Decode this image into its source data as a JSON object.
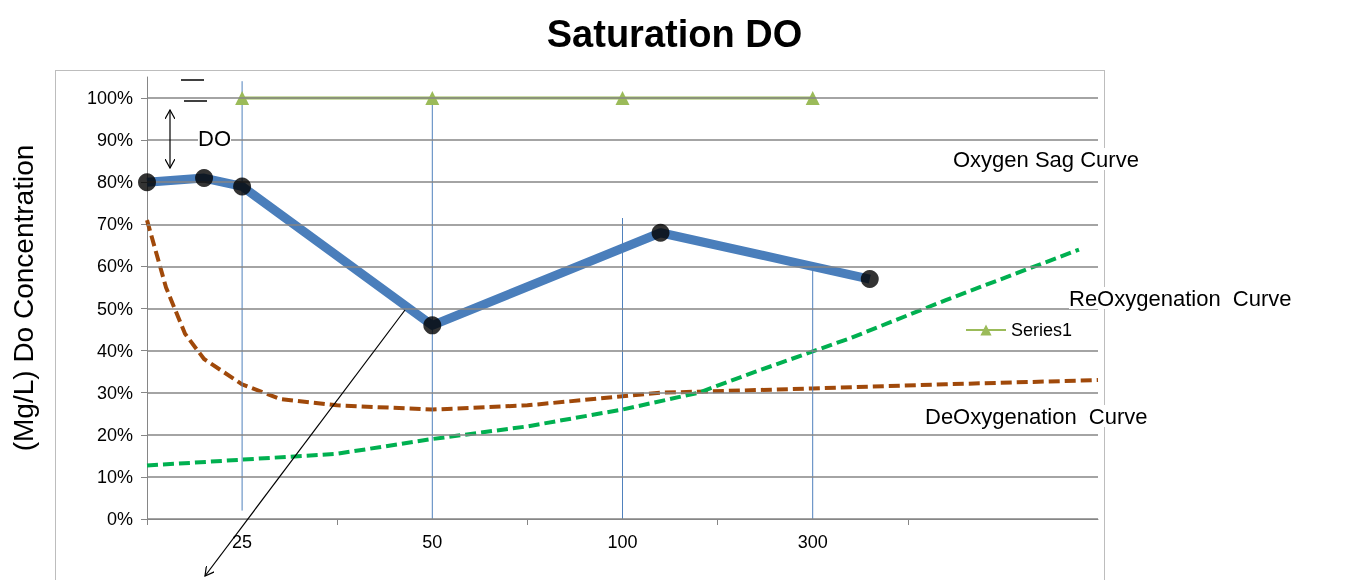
{
  "chart_data": {
    "type": "line",
    "title": "Saturation DO",
    "ylabel": "(Mg/L) Do Concentration",
    "annotations": [
      "DO",
      "Oxygen Sag Curve",
      "ReOxygenation  Curve",
      "DeOxygenation  Curve"
    ],
    "categories": [
      null,
      null,
      null,
      null,
      null,
      "25",
      null,
      null,
      null,
      null,
      null,
      null,
      null,
      null,
      null,
      "50",
      null,
      null,
      null,
      null,
      null,
      null,
      null,
      null,
      null,
      "100",
      null,
      null,
      null,
      null,
      null,
      null,
      null,
      null,
      null,
      "300",
      null,
      null,
      null,
      null,
      null,
      null,
      null,
      null,
      null,
      null,
      null,
      null,
      null,
      null,
      null
    ],
    "ylim": [
      0,
      105
    ],
    "yticks": [
      {
        "value": 0,
        "label": "0%"
      },
      {
        "value": 10,
        "label": "10%"
      },
      {
        "value": 20,
        "label": "20%"
      },
      {
        "value": 30,
        "label": "30%"
      },
      {
        "value": 40,
        "label": "40%"
      },
      {
        "value": 50,
        "label": "50%"
      },
      {
        "value": 60,
        "label": "60%"
      },
      {
        "value": 70,
        "label": "70%"
      },
      {
        "value": 80,
        "label": "80%"
      },
      {
        "value": 90,
        "label": "90%"
      },
      {
        "value": 100,
        "label": "100%"
      }
    ],
    "grid": "y",
    "legend": "right",
    "series": [
      {
        "color": "#4a7ebb",
        "marker": "none",
        "values": [
          80,
          null,
          null,
          81,
          null,
          79,
          null,
          null,
          null,
          null,
          null,
          null,
          null,
          null,
          null,
          46,
          null,
          null,
          null,
          null,
          null,
          null,
          null,
          null,
          null,
          null,
          null,
          68,
          null,
          null,
          null,
          null,
          null,
          null,
          null,
          null,
          null,
          null,
          57,
          null,
          null,
          null,
          null,
          null,
          null,
          null,
          null,
          null,
          null,
          null,
          null
        ]
      },
      {
        "type": "scatter",
        "color": "#000000",
        "marker": "circle",
        "values": [
          80,
          null,
          null,
          81,
          null,
          79,
          null,
          null,
          null,
          null,
          null,
          null,
          null,
          null,
          null,
          46,
          null,
          null,
          null,
          null,
          null,
          null,
          null,
          null,
          null,
          null,
          null,
          68,
          null,
          null,
          null,
          null,
          null,
          null,
          null,
          null,
          null,
          null,
          57,
          null,
          null,
          null,
          null,
          null,
          null,
          null,
          null,
          null,
          null,
          null,
          null
        ]
      },
      {
        "name": "Series1",
        "color": "#9bbb59",
        "marker": "triangle",
        "values": [
          null,
          null,
          null,
          null,
          null,
          100,
          null,
          null,
          null,
          null,
          null,
          null,
          null,
          null,
          null,
          100,
          null,
          null,
          null,
          null,
          null,
          null,
          null,
          null,
          null,
          100,
          null,
          null,
          null,
          null,
          null,
          null,
          null,
          null,
          null,
          100,
          null,
          null,
          null,
          null,
          null,
          null,
          null,
          null,
          null,
          null,
          null,
          null,
          null,
          null,
          null
        ]
      },
      {
        "color": "#a0490a",
        "marker": "none",
        "line_style": "dashed",
        "values": [
          71,
          55,
          44,
          38,
          null,
          32,
          null,
          28.5,
          null,
          null,
          27,
          null,
          null,
          null,
          null,
          26,
          null,
          null,
          null,
          null,
          27,
          null,
          null,
          null,
          null,
          null,
          null,
          30,
          null,
          null,
          null,
          null,
          null,
          null,
          null,
          31,
          null,
          null,
          null,
          null,
          null,
          null,
          32,
          null,
          null,
          null,
          null,
          null,
          null,
          null,
          33
        ]
      },
      {
        "color": "#00b050",
        "marker": "none",
        "line_style": "dashed",
        "values": [
          12.7,
          null,
          null,
          null,
          null,
          null,
          null,
          null,
          null,
          null,
          15.5,
          null,
          null,
          null,
          null,
          19,
          null,
          null,
          null,
          null,
          22,
          null,
          null,
          null,
          null,
          26,
          null,
          null,
          null,
          30,
          null,
          null,
          35,
          null,
          null,
          null,
          null,
          43,
          null,
          null,
          null,
          null,
          52,
          null,
          null,
          null,
          null,
          null,
          null,
          64,
          null
        ]
      },
      {
        "color": "#4f81bd",
        "marker": "none",
        "x": [
          "25",
          "25"
        ],
        "values": [
          2,
          104
        ]
      },
      {
        "color": "#4f81bd",
        "marker": "none",
        "x": [
          "50",
          "50"
        ],
        "values": [
          0,
          101
        ]
      },
      {
        "color": "#4f81bd",
        "marker": "none",
        "x": [
          "100",
          "100"
        ],
        "values": [
          0,
          71.5
        ]
      },
      {
        "color": "#4f81bd",
        "marker": "none",
        "x": [
          "300",
          "300"
        ],
        "values": [
          0,
          59.6
        ]
      }
    ]
  }
}
